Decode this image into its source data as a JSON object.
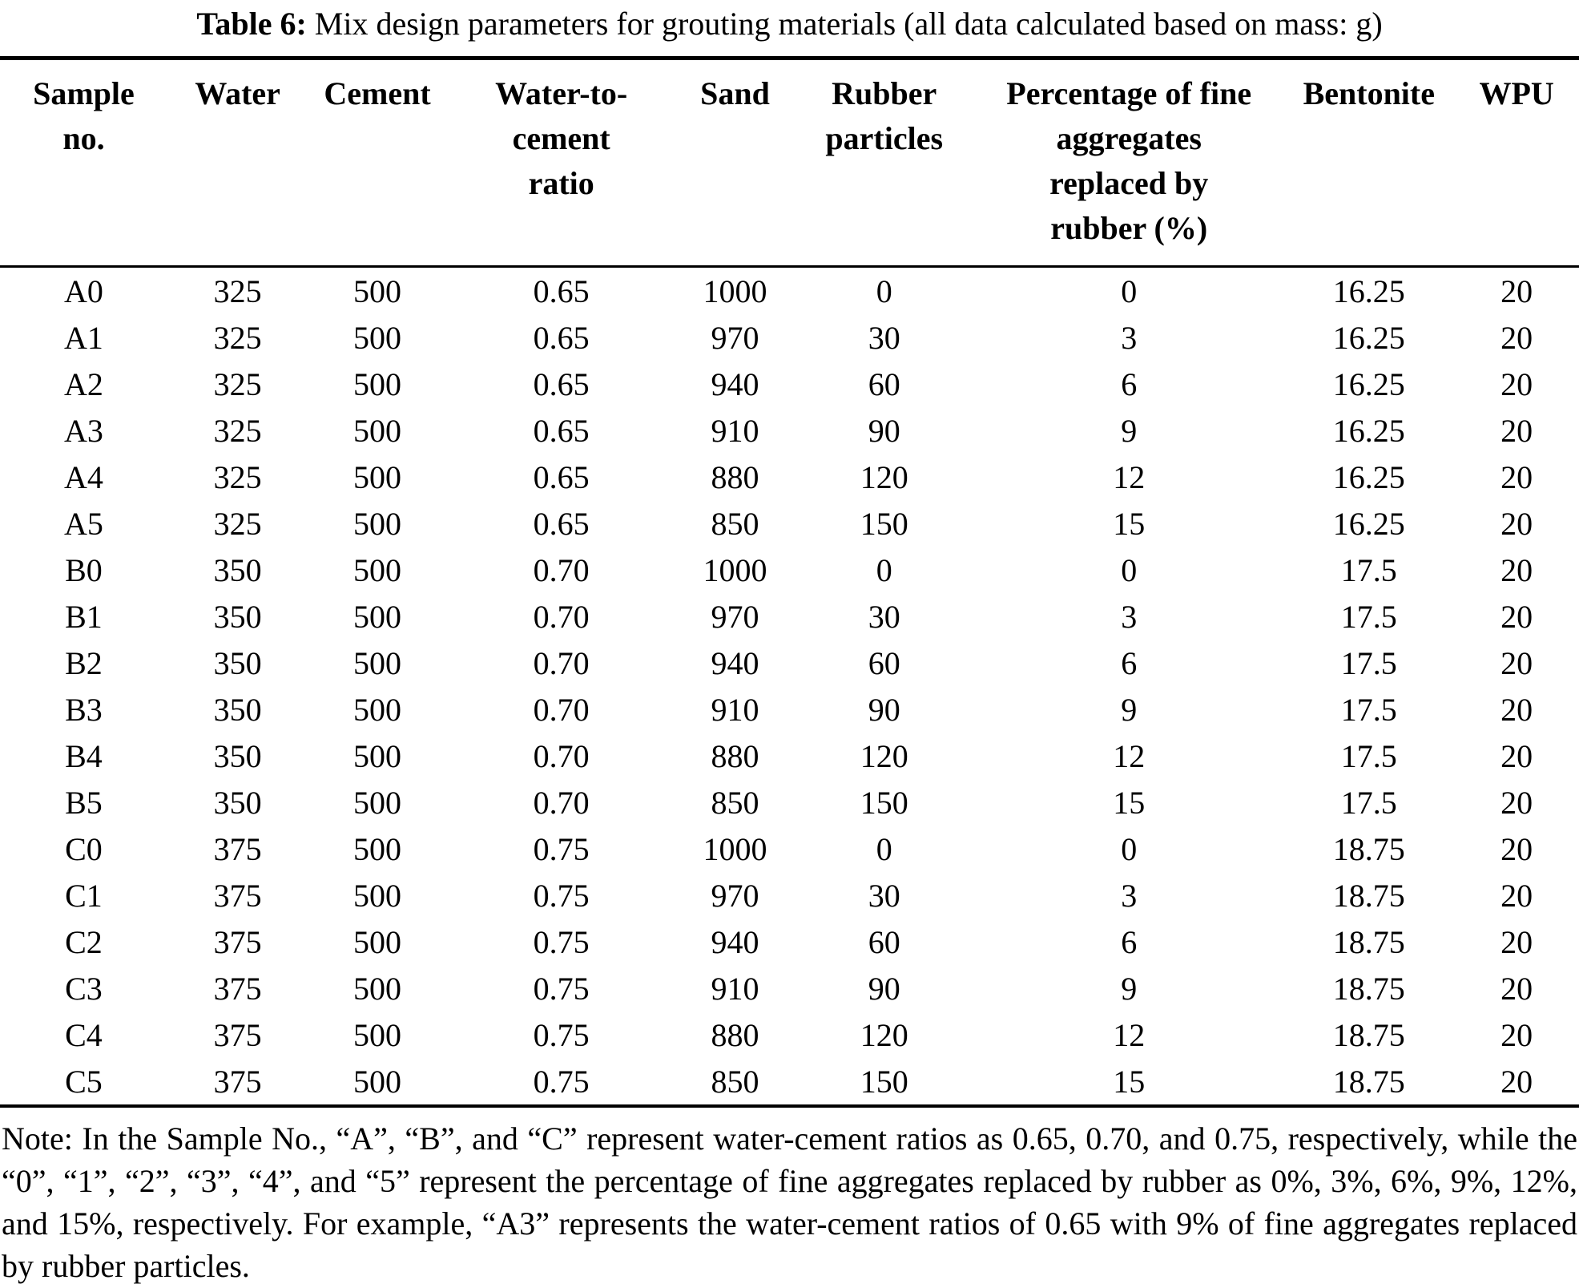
{
  "caption": {
    "label": "Table 6:",
    "text": " Mix design parameters for grouting materials (all data calculated based on mass: g)"
  },
  "table": {
    "columns": [
      [
        "Sample",
        "no."
      ],
      [
        "Water"
      ],
      [
        "Cement"
      ],
      [
        "Water-to-",
        "cement",
        "ratio"
      ],
      [
        "Sand"
      ],
      [
        "Rubber",
        "particles"
      ],
      [
        "Percentage of fine",
        "aggregates",
        "replaced by",
        "rubber (%)"
      ],
      [
        "Bentonite"
      ],
      [
        "WPU"
      ]
    ],
    "rows": [
      [
        "A0",
        "325",
        "500",
        "0.65",
        "1000",
        "0",
        "0",
        "16.25",
        "20"
      ],
      [
        "A1",
        "325",
        "500",
        "0.65",
        "970",
        "30",
        "3",
        "16.25",
        "20"
      ],
      [
        "A2",
        "325",
        "500",
        "0.65",
        "940",
        "60",
        "6",
        "16.25",
        "20"
      ],
      [
        "A3",
        "325",
        "500",
        "0.65",
        "910",
        "90",
        "9",
        "16.25",
        "20"
      ],
      [
        "A4",
        "325",
        "500",
        "0.65",
        "880",
        "120",
        "12",
        "16.25",
        "20"
      ],
      [
        "A5",
        "325",
        "500",
        "0.65",
        "850",
        "150",
        "15",
        "16.25",
        "20"
      ],
      [
        "B0",
        "350",
        "500",
        "0.70",
        "1000",
        "0",
        "0",
        "17.5",
        "20"
      ],
      [
        "B1",
        "350",
        "500",
        "0.70",
        "970",
        "30",
        "3",
        "17.5",
        "20"
      ],
      [
        "B2",
        "350",
        "500",
        "0.70",
        "940",
        "60",
        "6",
        "17.5",
        "20"
      ],
      [
        "B3",
        "350",
        "500",
        "0.70",
        "910",
        "90",
        "9",
        "17.5",
        "20"
      ],
      [
        "B4",
        "350",
        "500",
        "0.70",
        "880",
        "120",
        "12",
        "17.5",
        "20"
      ],
      [
        "B5",
        "350",
        "500",
        "0.70",
        "850",
        "150",
        "15",
        "17.5",
        "20"
      ],
      [
        "C0",
        "375",
        "500",
        "0.75",
        "1000",
        "0",
        "0",
        "18.75",
        "20"
      ],
      [
        "C1",
        "375",
        "500",
        "0.75",
        "970",
        "30",
        "3",
        "18.75",
        "20"
      ],
      [
        "C2",
        "375",
        "500",
        "0.75",
        "940",
        "60",
        "6",
        "18.75",
        "20"
      ],
      [
        "C3",
        "375",
        "500",
        "0.75",
        "910",
        "90",
        "9",
        "18.75",
        "20"
      ],
      [
        "C4",
        "375",
        "500",
        "0.75",
        "880",
        "120",
        "12",
        "18.75",
        "20"
      ],
      [
        "C5",
        "375",
        "500",
        "0.75",
        "850",
        "150",
        "15",
        "18.75",
        "20"
      ]
    ]
  },
  "note": "Note: In the Sample No., “A”, “B”, and “C” represent water-cement ratios as 0.65, 0.70, and 0.75, respectively, while the “0”, “1”, “2”, “3”, “4”, and “5” represent the percentage of fine aggregates replaced by rubber as 0%, 3%, 6%, 9%, 12%, and 15%, respectively. For example, “A3” represents the water-cement ratios of 0.65 with 9% of fine aggregates replaced by rubber particles.",
  "colors": {
    "text": "#000000",
    "background": "#ffffff",
    "rule": "#000000"
  }
}
